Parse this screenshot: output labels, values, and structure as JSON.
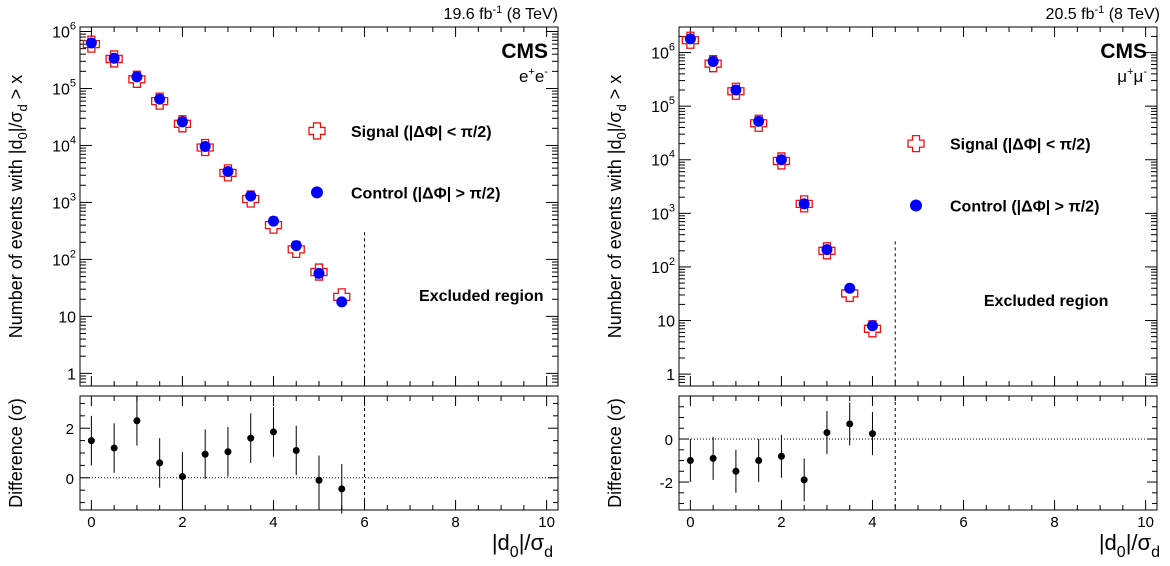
{
  "chart_data": [
    {
      "type": "scatter",
      "id": "ee",
      "header": {
        "lumi": "19.6 fb",
        "lumi_sup": "-1",
        "energy": " (8 TeV)"
      },
      "cms_label": "CMS",
      "channel": {
        "l1": "e",
        "s1": "+",
        "l2": "e",
        "s2": "-"
      },
      "ylabel": {
        "pre": "Number of events with |d",
        "sub0": "0",
        "mid": "|/σ",
        "subd": "d",
        "post": " > x"
      },
      "xlabel": {
        "pre": "|d",
        "sub0": "0",
        "mid": "|/σ",
        "subd": "d"
      },
      "ratio_ylabel": "Difference (σ)",
      "xlim": [
        -0.25,
        10.25
      ],
      "ylim_log": [
        0.6,
        1200000
      ],
      "ratio_ylim": [
        -1.3,
        3.3
      ],
      "x_ticks": [
        "0",
        "2",
        "4",
        "6",
        "8",
        "10"
      ],
      "y_ticks": [
        "1",
        "10",
        "10",
        "10",
        "10",
        "10",
        "10"
      ],
      "y_tick_exponents": [
        "",
        "",
        "2",
        "3",
        "4",
        "5",
        "6"
      ],
      "ratio_y_ticks": [
        "0",
        "2"
      ],
      "excluded_label": "Excluded region",
      "excluded_from": 6,
      "legend": {
        "signal": {
          "pre": "Signal (|ΔΦ| < π/2)"
        },
        "control": {
          "pre": "Control (|ΔΦ| > π/2)"
        }
      },
      "signal": {
        "x": [
          0,
          0.5,
          1,
          1.5,
          2,
          2.5,
          3,
          3.5,
          4,
          4.5,
          5,
          5.5
        ],
        "y": [
          600000,
          330000,
          145000,
          60000,
          24000,
          9200,
          3300,
          1150,
          400,
          150,
          60,
          22
        ]
      },
      "control": {
        "x": [
          0,
          0.5,
          1,
          1.5,
          2,
          2.5,
          3,
          3.5,
          4,
          4.5,
          5,
          5.5
        ],
        "y": [
          630000,
          340000,
          160000,
          65000,
          26000,
          9600,
          3500,
          1300,
          470,
          175,
          57,
          18
        ]
      },
      "difference": {
        "x": [
          0,
          0.5,
          1,
          1.5,
          2,
          2.5,
          3,
          3.5,
          4,
          4.5,
          5,
          5.5
        ],
        "y": [
          1.5,
          1.2,
          2.3,
          0.6,
          0.05,
          0.95,
          1.05,
          1.6,
          1.85,
          1.1,
          -0.1,
          -0.45
        ],
        "err": [
          1.0,
          1.0,
          1.0,
          1.0,
          1.0,
          1.0,
          1.0,
          1.0,
          1.0,
          1.0,
          1.0,
          1.0
        ]
      }
    },
    {
      "type": "scatter",
      "id": "mumu",
      "header": {
        "lumi": "20.5 fb",
        "lumi_sup": "-1",
        "energy": " (8 TeV)"
      },
      "cms_label": "CMS",
      "channel": {
        "l1": "μ",
        "s1": "+",
        "l2": "μ",
        "s2": "-"
      },
      "ylabel": {
        "pre": "Number of events with |d",
        "sub0": "0",
        "mid": "|/σ",
        "subd": "d",
        "post": " > x"
      },
      "xlabel": {
        "pre": "|d",
        "sub0": "0",
        "mid": "|/σ",
        "subd": "d"
      },
      "ratio_ylabel": "Difference (σ)",
      "xlim": [
        -0.25,
        10.25
      ],
      "ylim_log": [
        0.6,
        3000000
      ],
      "ratio_ylim": [
        -3.3,
        2.0
      ],
      "x_ticks": [
        "0",
        "2",
        "4",
        "6",
        "8",
        "10"
      ],
      "y_ticks": [
        "1",
        "10",
        "10",
        "10",
        "10",
        "10",
        "10"
      ],
      "y_tick_exponents": [
        "",
        "",
        "2",
        "3",
        "4",
        "5",
        "6"
      ],
      "ratio_y_ticks": [
        "-2",
        "0"
      ],
      "excluded_label": "Excluded region",
      "excluded_from": 4.5,
      "legend": {
        "signal": {
          "pre": "Signal (|ΔΦ| < π/2)"
        },
        "control": {
          "pre": "Control (|ΔΦ| > π/2)"
        }
      },
      "signal": {
        "x": [
          0,
          0.5,
          1,
          1.5,
          2,
          2.5,
          3,
          3.5,
          4
        ],
        "y": [
          1700000,
          620000,
          190000,
          48000,
          9500,
          1500,
          200,
          32,
          7
        ]
      },
      "control": {
        "x": [
          0,
          0.5,
          1,
          1.5,
          2,
          2.5,
          3,
          3.5,
          4
        ],
        "y": [
          1800000,
          680000,
          200000,
          52000,
          10000,
          1500,
          210,
          40,
          8
        ]
      },
      "difference": {
        "x": [
          0,
          0.5,
          1,
          1.5,
          2,
          2.5,
          3,
          3.5,
          4
        ],
        "y": [
          -1.0,
          -0.9,
          -1.5,
          -1.0,
          -0.8,
          -1.9,
          0.3,
          0.7,
          0.25
        ],
        "err": [
          1.0,
          1.0,
          1.0,
          1.0,
          1.0,
          1.0,
          1.0,
          1.0,
          1.0
        ]
      }
    }
  ]
}
